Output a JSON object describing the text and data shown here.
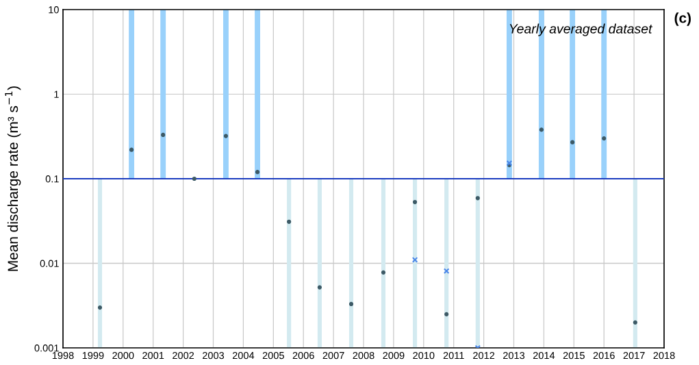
{
  "chart_data": {
    "type": "scatter",
    "ylabel": "Mean discharge rate (m³ s$^{−1}$)",
    "log": "y",
    "grid": true,
    "xlim": [
      1998,
      2018
    ],
    "xticks": [
      1998,
      1999,
      2000,
      2001,
      2002,
      2003,
      2004,
      2005,
      2006,
      2007,
      2008,
      2009,
      2010,
      2011,
      2012,
      2013,
      2014,
      2015,
      2016,
      2017,
      2018
    ],
    "ylim": [
      0.001,
      10
    ],
    "yticks": [
      0.001,
      0.01,
      0.1,
      1,
      10
    ],
    "series": [
      {
        "type": "bar",
        "color": "#99d1fb",
        "x": [
          2000.28,
          2001.33,
          2003.42,
          2004.47,
          2012.85,
          2013.92,
          2014.95,
          2016.0
        ],
        "base": [
          0.1,
          0.1,
          0.1,
          0.1,
          0.1,
          0.1,
          0.1,
          0.1
        ],
        "values": [
          9.9,
          9.9,
          9.9,
          9.9,
          9.9,
          9.9,
          9.9,
          9.9
        ]
      },
      {
        "type": "bar",
        "color": "#d3eaf0",
        "x": [
          1999.23,
          2005.52,
          2006.54,
          2007.59,
          2008.66,
          2009.71,
          2010.76,
          2011.8,
          2017.04
        ],
        "base": [
          0.001,
          0.001,
          0.001,
          0.001,
          0.001,
          0.001,
          0.001,
          0.001,
          0.001
        ],
        "values": [
          0.099,
          0.099,
          0.099,
          0.099,
          0.099,
          0.099,
          0.099,
          0.099,
          0.099
        ]
      },
      {
        "marker": "circle",
        "color": "#3d5a66",
        "x": [
          1999.23,
          2000.28,
          2001.33,
          2002.37,
          2003.42,
          2004.47,
          2005.52,
          2006.54,
          2007.59,
          2008.66,
          2009.71,
          2010.76,
          2011.8,
          2012.85,
          2013.92,
          2014.95,
          2016.0,
          2017.04
        ],
        "values": [
          0.003,
          0.22,
          0.33,
          0.1,
          0.32,
          0.12,
          0.031,
          0.0052,
          0.0033,
          0.0078,
          0.053,
          0.0025,
          0.059,
          0.145,
          0.38,
          0.27,
          0.3,
          0.002
        ]
      },
      {
        "marker": "cross",
        "color": "#4a86e8",
        "x": [
          2009.71,
          2010.76,
          2011.8,
          2012.85
        ],
        "values": [
          0.011,
          0.0081,
          0.001,
          0.153
        ]
      }
    ],
    "ref_lines": [
      {
        "axis": "y",
        "value": 0.1,
        "color": "#1a3bbf",
        "line_style": "solid"
      }
    ],
    "annotations": [
      "Yearly averaged dataset",
      "(c)"
    ]
  }
}
